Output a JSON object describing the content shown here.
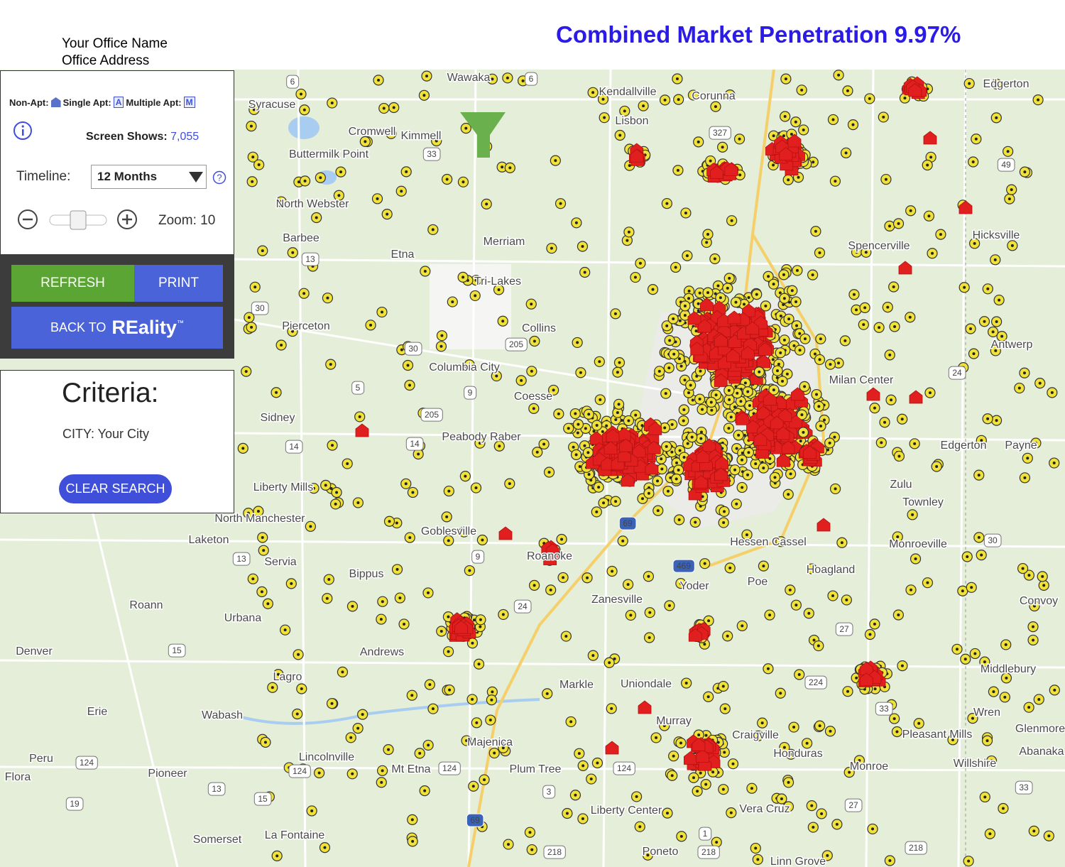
{
  "header": {
    "office_name": "Your Office Name",
    "office_address": "Office Address",
    "title": "Combined Market Penetration 9.97%"
  },
  "legend": {
    "non_apt": "Non-Apt:",
    "single_apt": "Single Apt:",
    "single_icon": "A",
    "multiple_apt": "Multiple Apt:",
    "multiple_icon": "M"
  },
  "screen_shows": {
    "label": "Screen Shows:",
    "value": "7,055"
  },
  "timeline": {
    "label": "Timeline:",
    "selected": "12 Months"
  },
  "zoom": {
    "label": "Zoom: 10"
  },
  "buttons": {
    "refresh": "REFRESH",
    "print": "PRINT",
    "back_to": "BACK TO",
    "reality": "REality",
    "tm": "™"
  },
  "criteria": {
    "title": "Criteria:",
    "city": "CITY: Your City",
    "clear": "CLEAR SEARCH"
  },
  "map": {
    "places": [
      "Wawaka",
      "Kendallville",
      "Corunna",
      "Edgerton",
      "Syracuse",
      "Cromwell",
      "Kimmell",
      "Lisbon",
      "Buttermilk Point",
      "North Webster",
      "Hicksville",
      "Barbee",
      "Etna",
      "Merriam",
      "Tri-Lakes",
      "Spencerville",
      "Pierceton",
      "Collins",
      "Antwerp",
      "Columbia City",
      "Milan Center",
      "Coesse",
      "Sidney",
      "Peabody Raber",
      "Edgerton",
      "Payne",
      "Liberty Mills",
      "Zulu",
      "Townley",
      "North Manchester",
      "Goblesville",
      "Laketon",
      "Servia",
      "Bippus",
      "Roanoke",
      "Hessen Cassel",
      "Monroeville",
      "Hoagland",
      "Yoder",
      "Poe",
      "Zanesville",
      "Roann",
      "Convoy",
      "Urbana",
      "Denver",
      "Andrews",
      "Middlebury",
      "Lagro",
      "Uniondale",
      "Markle",
      "Wren",
      "Erie",
      "Wabash",
      "Murray",
      "Craigville",
      "Pleasant Mills",
      "Majenica",
      "Honduras",
      "Lincolnville",
      "Monroe",
      "Willshire",
      "Peru",
      "Mt Etna",
      "Plum Tree",
      "Pioneer",
      "Liberty Center",
      "Vera Cruz",
      "La Fontaine",
      "Somerset",
      "Poneto",
      "Linn Grove",
      "Glenmore",
      "Abanaka",
      "Flora"
    ],
    "shields": [
      "6",
      "6",
      "33",
      "327",
      "49",
      "13",
      "30",
      "30",
      "205",
      "9",
      "205",
      "14",
      "14",
      "5",
      "24",
      "13",
      "9",
      "30",
      "24",
      "469",
      "15",
      "27",
      "224",
      "33",
      "124",
      "124",
      "124",
      "124",
      "13",
      "15",
      "19",
      "3",
      "27",
      "33",
      "1",
      "218",
      "218",
      "218",
      "69",
      "69"
    ]
  }
}
